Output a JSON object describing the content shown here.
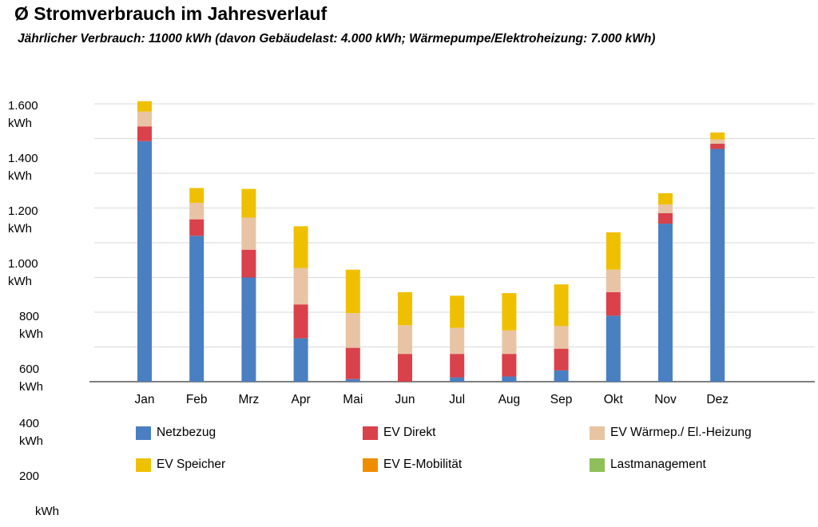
{
  "chart_data": {
    "type": "bar",
    "stacked": true,
    "title": "Ø Stromverbrauch im Jahresverlauf",
    "subtitle": "Jährlicher Verbrauch: 11000 kWh (davon Gebäudelast: 4.000 kWh; Wärmepumpe/Elektroheizung: 7.000 kWh)",
    "categories": [
      "Jan",
      "Feb",
      "Mrz",
      "Apr",
      "Mai",
      "Jun",
      "Jul",
      "Aug",
      "Sep",
      "Okt",
      "Nov",
      "Dez"
    ],
    "y_tick_values": [
      200,
      400,
      600,
      800,
      1000,
      1200,
      1400,
      1600
    ],
    "y_tick_labels": [
      {
        "value": "1.600",
        "unit": "kWh"
      },
      {
        "value": "1.400",
        "unit": "kWh"
      },
      {
        "value": "1.200",
        "unit": "kWh"
      },
      {
        "value": "1.000",
        "unit": "kWh"
      },
      {
        "value": "800",
        "unit": "kWh"
      },
      {
        "value": "600",
        "unit": "kWh"
      },
      {
        "value": "400",
        "unit": "kWh"
      },
      {
        "value": "200",
        "unit": "kWh"
      }
    ],
    "ylim": [
      0,
      1600
    ],
    "grid": true,
    "legend_position": "bottom",
    "series": [
      {
        "name": "Netzbezug",
        "color": "#4a7fc1",
        "values": [
          1385,
          840,
          600,
          250,
          15,
          0,
          25,
          30,
          65,
          380,
          910,
          1340
        ]
      },
      {
        "name": "EV Direkt",
        "color": "#d9414b",
        "values": [
          85,
          95,
          160,
          195,
          180,
          160,
          135,
          130,
          125,
          135,
          60,
          30
        ]
      },
      {
        "name": "EV Wärmep./ El.-Heizung",
        "color": "#e8c4a4",
        "values": [
          85,
          95,
          185,
          210,
          200,
          165,
          150,
          135,
          130,
          130,
          50,
          25
        ]
      },
      {
        "name": "EV Speicher",
        "color": "#efc000",
        "values": [
          60,
          85,
          165,
          240,
          250,
          190,
          185,
          215,
          240,
          215,
          65,
          40
        ]
      },
      {
        "name": "EV E-Mobilität",
        "color": "#f08c00",
        "values": [
          0,
          0,
          0,
          0,
          0,
          0,
          0,
          0,
          0,
          0,
          0,
          0
        ]
      },
      {
        "name": "Lastmanagement",
        "color": "#8fbf5a",
        "values": [
          0,
          0,
          0,
          0,
          0,
          0,
          0,
          0,
          0,
          0,
          0,
          0
        ]
      }
    ]
  }
}
